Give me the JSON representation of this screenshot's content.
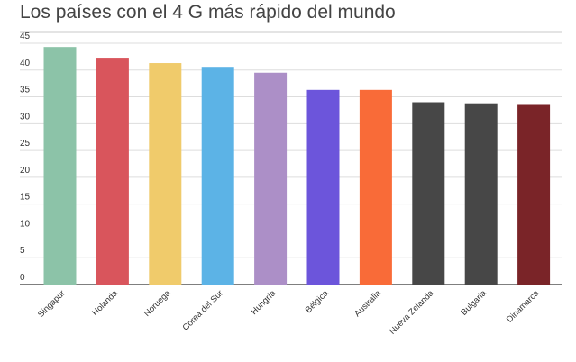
{
  "chart_data": {
    "type": "bar",
    "title": "Los países con el 4 G más rápido del mundo",
    "xlabel": "",
    "ylabel": "",
    "ylim": [
      0,
      45
    ],
    "yticks": [
      0,
      5,
      10,
      15,
      20,
      25,
      30,
      35,
      40,
      45
    ],
    "grid": true,
    "legend": "none",
    "categories": [
      "Singapur",
      "Holanda",
      "Noruega",
      "Corea del Sur",
      "Hungría",
      "Bélgica",
      "Australia",
      "Nueva Zelanda",
      "Bulgaria",
      "Dinamarca"
    ],
    "values": [
      44.3,
      42.3,
      41.3,
      40.6,
      39.5,
      36.3,
      36.3,
      34.0,
      33.8,
      33.5
    ],
    "colors": [
      "#8cc3a8",
      "#d9555c",
      "#f0cb6b",
      "#5cb3e6",
      "#ac8fc7",
      "#6c55db",
      "#f96b38",
      "#474747",
      "#474747",
      "#7a2428"
    ]
  }
}
